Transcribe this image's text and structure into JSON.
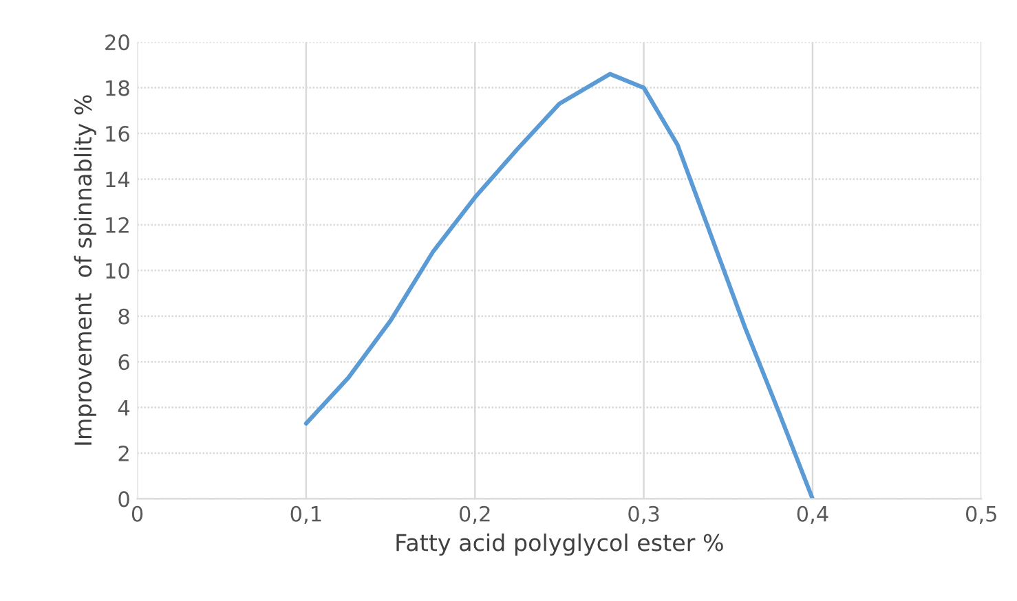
{
  "chart_data": {
    "type": "line",
    "xlabel": "Fatty acid polyglycol ester %",
    "ylabel": "Improvement  of spinnablity %",
    "series": [
      {
        "color": "#5b9bd5",
        "x": [
          0.1,
          0.125,
          0.15,
          0.175,
          0.2,
          0.225,
          0.25,
          0.28,
          0.3,
          0.32,
          0.34,
          0.36,
          0.38,
          0.4
        ],
        "values": [
          3.3,
          5.3,
          7.8,
          10.8,
          13.2,
          15.3,
          17.3,
          18.6,
          18.0,
          15.5,
          11.5,
          7.5,
          3.8,
          0
        ]
      }
    ],
    "xlim": [
      0,
      0.5
    ],
    "xticks": [
      0,
      {
        "value": 0.1,
        "label": "0,1"
      },
      {
        "value": 0.2,
        "label": "0,2"
      },
      {
        "value": 0.3,
        "label": "0,3"
      },
      {
        "value": 0.4,
        "label": "0,4"
      },
      {
        "value": 0.5,
        "label": "0,5"
      }
    ],
    "ylim": [
      0,
      20
    ],
    "yticks": [
      0,
      2,
      4,
      6,
      8,
      10,
      12,
      14,
      16,
      18,
      20
    ],
    "grid": true,
    "line_style": "solid",
    "marker": "none"
  }
}
